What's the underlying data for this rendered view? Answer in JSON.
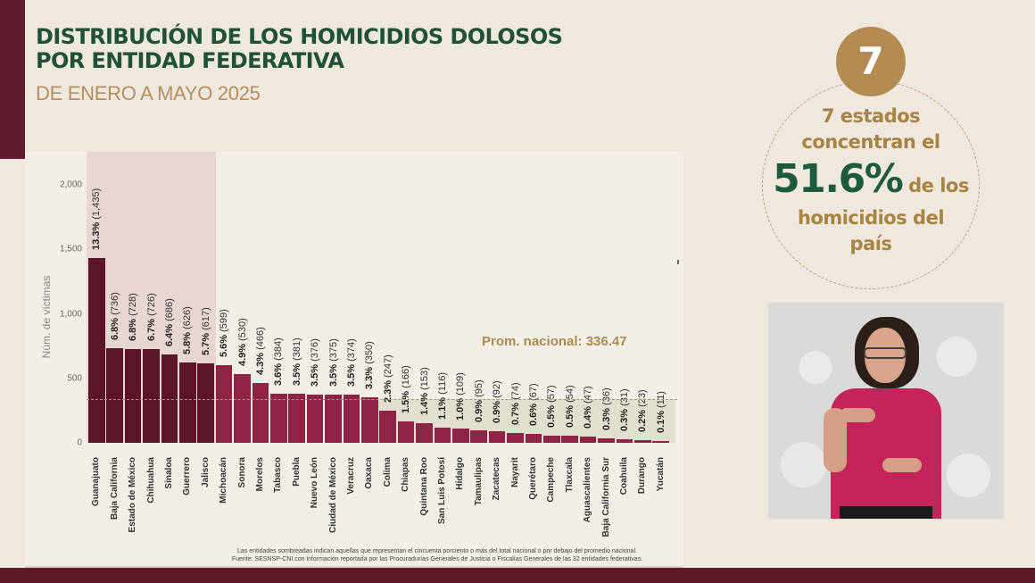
{
  "header": {
    "title_line1": "DISTRIBUCIÓN DE LOS HOMICIDIOS DOLOSOS",
    "title_line2": "POR ENTIDAD FEDERATIVA",
    "subtitle": "DE ENERO A MAYO 2025"
  },
  "colors": {
    "brand_maroon": "#611a2e",
    "title_green": "#1f5136",
    "gold": "#b38a52",
    "bar_top7": "#5c1528",
    "bar_rest": "#8e2345",
    "shade_top": "#e8d6d4",
    "shade_low": "#e3dfcf"
  },
  "chart_data": {
    "type": "bar",
    "title": "Distribución de los homicidios dolosos por entidad federativa",
    "subtitle": "De enero a mayo 2025",
    "xlabel": "",
    "ylabel": "Núm. de víctimas",
    "ylim": [
      0,
      2000
    ],
    "yticks": [
      "0",
      "500",
      "1,000",
      "1,500",
      "2,000"
    ],
    "grid": false,
    "legend": null,
    "categories": [
      "Guanajuato",
      "Baja California",
      "Estado de México",
      "Chihuahua",
      "Sinaloa",
      "Guerrero",
      "Jalisco",
      "Michoacán",
      "Sonora",
      "Morelos",
      "Tabasco",
      "Puebla",
      "Nuevo León",
      "Ciudad de México",
      "Veracruz",
      "Oaxaca",
      "Colima",
      "Chiapas",
      "Quintana Roo",
      "San Luis Potosí",
      "Hidalgo",
      "Tamaulipas",
      "Zacatecas",
      "Nayarit",
      "Querétaro",
      "Campeche",
      "Tlaxcala",
      "Aguascalientes",
      "Baja California Sur",
      "Coahuila",
      "Durango",
      "Yucatán"
    ],
    "values": [
      1435,
      736,
      728,
      726,
      686,
      626,
      617,
      599,
      530,
      466,
      384,
      381,
      376,
      375,
      374,
      350,
      247,
      166,
      153,
      116,
      109,
      95,
      92,
      74,
      67,
      57,
      54,
      47,
      36,
      31,
      23,
      11
    ],
    "percent_labels": [
      "13.3%",
      "6.8%",
      "6.8%",
      "6.7%",
      "6.4%",
      "5.8%",
      "5.7%",
      "5.6%",
      "4.9%",
      "4.3%",
      "3.6%",
      "3.5%",
      "3.5%",
      "3.5%",
      "3.5%",
      "3.3%",
      "2.3%",
      "1.5%",
      "1.4%",
      "1.1%",
      "1.0%",
      "0.9%",
      "0.9%",
      "0.7%",
      "0.6%",
      "0.5%",
      "0.5%",
      "0.4%",
      "0.3%",
      "0.3%",
      "0.2%",
      "0.1%"
    ],
    "count_labels": [
      "(1,435)",
      "(736)",
      "(728)",
      "(726)",
      "(686)",
      "(626)",
      "(617)",
      "(599)",
      "(530)",
      "(466)",
      "(384)",
      "(381)",
      "(376)",
      "(375)",
      "(374)",
      "(350)",
      "(247)",
      "(166)",
      "(153)",
      "(116)",
      "(109)",
      "(95)",
      "(92)",
      "(74)",
      "(67)",
      "(57)",
      "(54)",
      "(47)",
      "(36)",
      "(31)",
      "(23)",
      "(11)"
    ],
    "highlighted_top_count": 7,
    "reference_line": {
      "label": "Prom. nacional: 336.47",
      "value": 336.47,
      "style": "dashed"
    },
    "annotations": [
      "Las entidades sombreadas indican aquellas que representan el cincuenta porciento o más del total nacional o por debajo del promedio nacional.",
      "Fuente: SESNSP-CNI con información reportada por las Procuradurías Generales de Justicia o Fiscalías Generales de las 32 entidades federativas."
    ]
  },
  "chart": {
    "ylabel": "Núm. de víctimas",
    "avg_label": "Prom. nacional: 336.47",
    "footnote_line1": "Las entidades sombreadas indican aquellas que representan el cincuenta porciento o más del total nacional o por debajo del promedio nacional.",
    "footnote_line2": "Fuente: SESNSP-CNI con información reportada por las Procuradurías Generales de Justicia o Fiscalías Generales de las 32 entidades federativas."
  },
  "callout": {
    "number": "7",
    "line1": "7 estados",
    "line2": "concentran el",
    "big_value": "51.6%",
    "line3_suffix": "de los",
    "line4": "homicidios del",
    "line5": "país"
  },
  "video": {
    "description": "Intérprete de lengua de señas"
  }
}
